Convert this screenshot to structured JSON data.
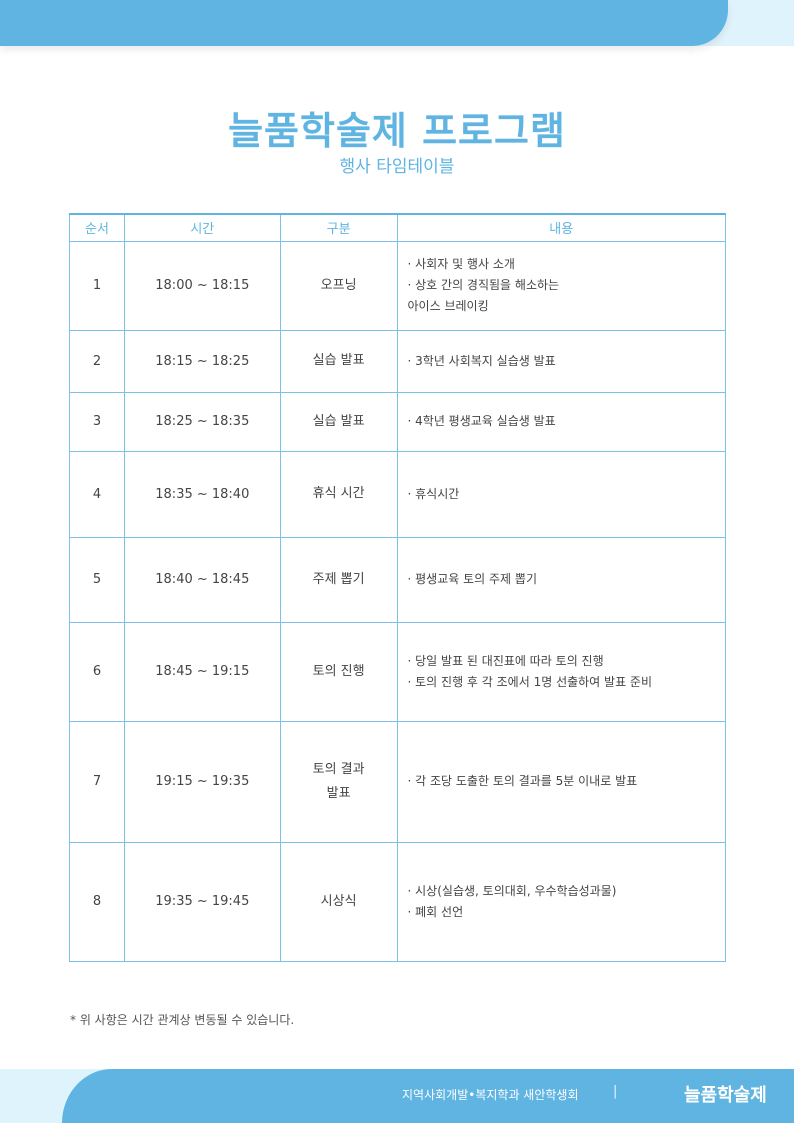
{
  "title": "늘품학술제 프로그램",
  "subtitle": "행사 타임테이블",
  "headers": [
    "순서",
    "시간",
    "구분",
    "내용"
  ],
  "rows": [
    {
      "no": "1",
      "time": "18:00 ~ 18:15",
      "type": "오프닝",
      "content": [
        "· 사회자 및 행사 소개",
        "· 상호 간의 경직됨을 해소하는",
        "아이스 브레이킹"
      ]
    },
    {
      "no": "2",
      "time": "18:15 ~ 18:25",
      "type": "실습 발표",
      "content": [
        "· 3학년 사회복지 실습생 발표"
      ]
    },
    {
      "no": "3",
      "time": "18:25 ~ 18:35",
      "type": "실습 발표",
      "content": [
        "· 4학년 평생교육 실습생 발표"
      ]
    },
    {
      "no": "4",
      "time": "18:35 ~ 18:40",
      "type": "휴식 시간",
      "content": [
        "· 휴식시간"
      ]
    },
    {
      "no": "5",
      "time": "18:40 ~ 18:45",
      "type": "주제 뽑기",
      "content": [
        "· 평생교육 토의 주제 뽑기"
      ]
    },
    {
      "no": "6",
      "time": "18:45 ~ 19:15",
      "type": "토의 진행",
      "content": [
        "· 당일 발표 된 대진표에 따라 토의 진행",
        "· 토의 진행 후 각 조에서 1명 선출하여 발표 준비"
      ]
    },
    {
      "no": "7",
      "time": "19:15 ~ 19:35",
      "type": "토의 결과\n발표",
      "content": [
        "· 각 조당 도출한 토의 결과를 5분 이내로 발표"
      ]
    },
    {
      "no": "8",
      "time": "19:35 ~ 19:45",
      "type": "시상식",
      "content": [
        "· 시상(실습생, 토의대회, 우수학습성과물)",
        "· 폐회 선언"
      ]
    }
  ],
  "note": "* 위 사항은 시간 관계상 변동될 수 있습니다.",
  "footer": {
    "org": "지역사회개발•복지학과 새안학생회",
    "separator": "|",
    "brand": "늘품학술제"
  },
  "colors": {
    "accent": "#5fb4e2",
    "light": "#dff3fc"
  }
}
